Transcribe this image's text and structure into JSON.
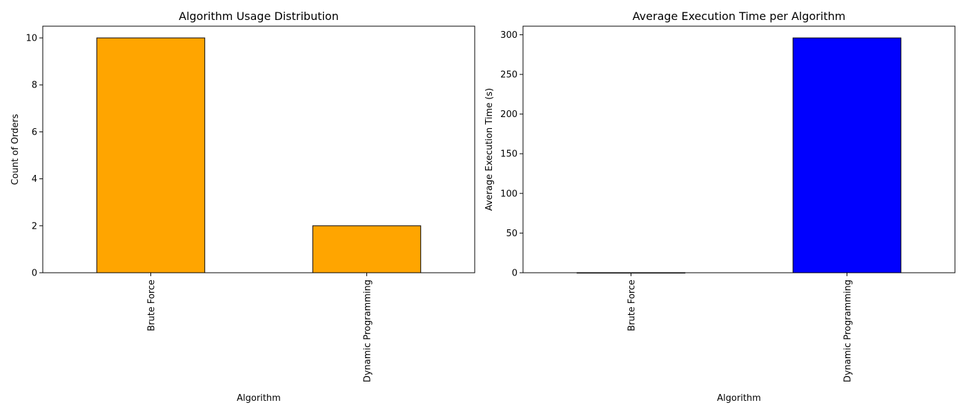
{
  "chart_data": [
    {
      "type": "bar",
      "title": "Algorithm Usage Distribution",
      "xlabel": "Algorithm",
      "ylabel": "Count of Orders",
      "categories": [
        "Brute Force",
        "Dynamic Programming"
      ],
      "values": [
        10,
        2
      ],
      "ylim": [
        0,
        10.5
      ],
      "yticks": [
        0,
        2,
        4,
        6,
        8,
        10
      ],
      "bar_color": "#FFA500",
      "edge_color": "#000000",
      "grid": false
    },
    {
      "type": "bar",
      "title": "Average Execution Time per Algorithm",
      "xlabel": "Algorithm",
      "ylabel": "Average Execution Time (s)",
      "categories": [
        "Brute Force",
        "Dynamic Programming"
      ],
      "values": [
        0.05,
        296
      ],
      "ylim": [
        0,
        310.8
      ],
      "yticks": [
        0,
        50,
        100,
        150,
        200,
        250,
        300
      ],
      "bar_color": "#0000FF",
      "edge_color": "#000000",
      "grid": false
    }
  ]
}
